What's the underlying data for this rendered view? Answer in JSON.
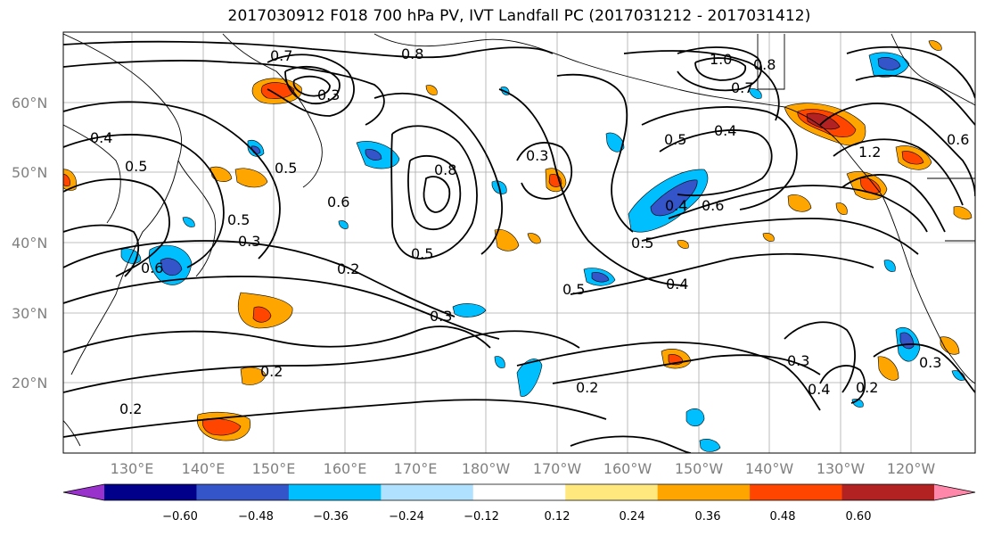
{
  "title": "2017030912 F018 700 hPa PV, IVT Landfall PC (2017031212 - 2017031412)",
  "lat_labels": [
    "60°N",
    "50°N",
    "40°N",
    "30°N",
    "20°N"
  ],
  "lon_labels": [
    "130°E",
    "140°E",
    "150°E",
    "160°E",
    "170°E",
    "180°W",
    "170°W",
    "160°W",
    "150°W",
    "140°W",
    "130°W",
    "120°W"
  ],
  "contour_labels": [
    "0.8",
    "0.7",
    "1.0",
    "0.8",
    "0.3",
    "0.4",
    "0.5",
    "0.3",
    "0.8",
    "0.7",
    "0.5",
    "0.4",
    "1.2",
    "0.5",
    "0.6",
    "0.4",
    "0.5",
    "0.6",
    "0.3",
    "0.6",
    "0.5",
    "0.4",
    "0.5",
    "0.2",
    "0.3",
    "0.2",
    "0.2",
    "0.4",
    "0.2",
    "0.2",
    "0.3",
    "0.5",
    "0.3",
    "0.6"
  ],
  "colorbar": {
    "tick_labels": [
      "−0.60",
      "−0.48",
      "−0.36",
      "−0.24",
      "−0.12",
      "0.12",
      "0.24",
      "0.36",
      "0.48",
      "0.60"
    ],
    "colors": [
      "#9932cc",
      "#00008b",
      "#3455c9",
      "#00bfff",
      "#b0e2ff",
      "#ffffff",
      "#ffe97f",
      "#ffa500",
      "#ff4500",
      "#b22222",
      "#ff88aa"
    ]
  }
}
